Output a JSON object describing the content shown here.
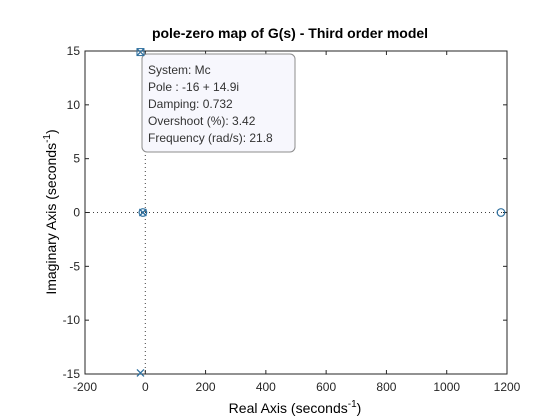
{
  "chart_data": {
    "type": "scatter",
    "title": "pole-zero map of G(s) - Third order model",
    "xlabel": "Real Axis (seconds",
    "xlabel_sup": "-1",
    "xlabel_close": ")",
    "ylabel": "Imaginary Axis (seconds",
    "ylabel_sup": "-1",
    "ylabel_close": ")",
    "xlim": [
      -200,
      1200
    ],
    "ylim": [
      -15,
      15
    ],
    "x_ticks": [
      -200,
      0,
      200,
      400,
      600,
      800,
      1000,
      1200
    ],
    "y_ticks": [
      -15,
      -10,
      -5,
      0,
      5,
      10,
      15
    ],
    "grid": false,
    "series": [
      {
        "marker": "x",
        "color": "#2e6f9e",
        "points": [
          {
            "x": -16,
            "y": 14.9
          },
          {
            "x": -16,
            "y": -14.9
          },
          {
            "x": -8,
            "y": 0
          }
        ]
      },
      {
        "marker": "o",
        "color": "#2e6f9e",
        "points": [
          {
            "x": -8,
            "y": 0
          },
          {
            "x": 1180,
            "y": 0
          }
        ]
      }
    ],
    "datatip": {
      "anchor": {
        "x": -16,
        "y": 14.9
      },
      "lines": [
        "System: Mc",
        "Pole : -16 + 14.9i",
        "Damping: 0.732",
        "Overshoot (%): 3.42",
        "Frequency (rad/s): 21.8"
      ]
    }
  }
}
